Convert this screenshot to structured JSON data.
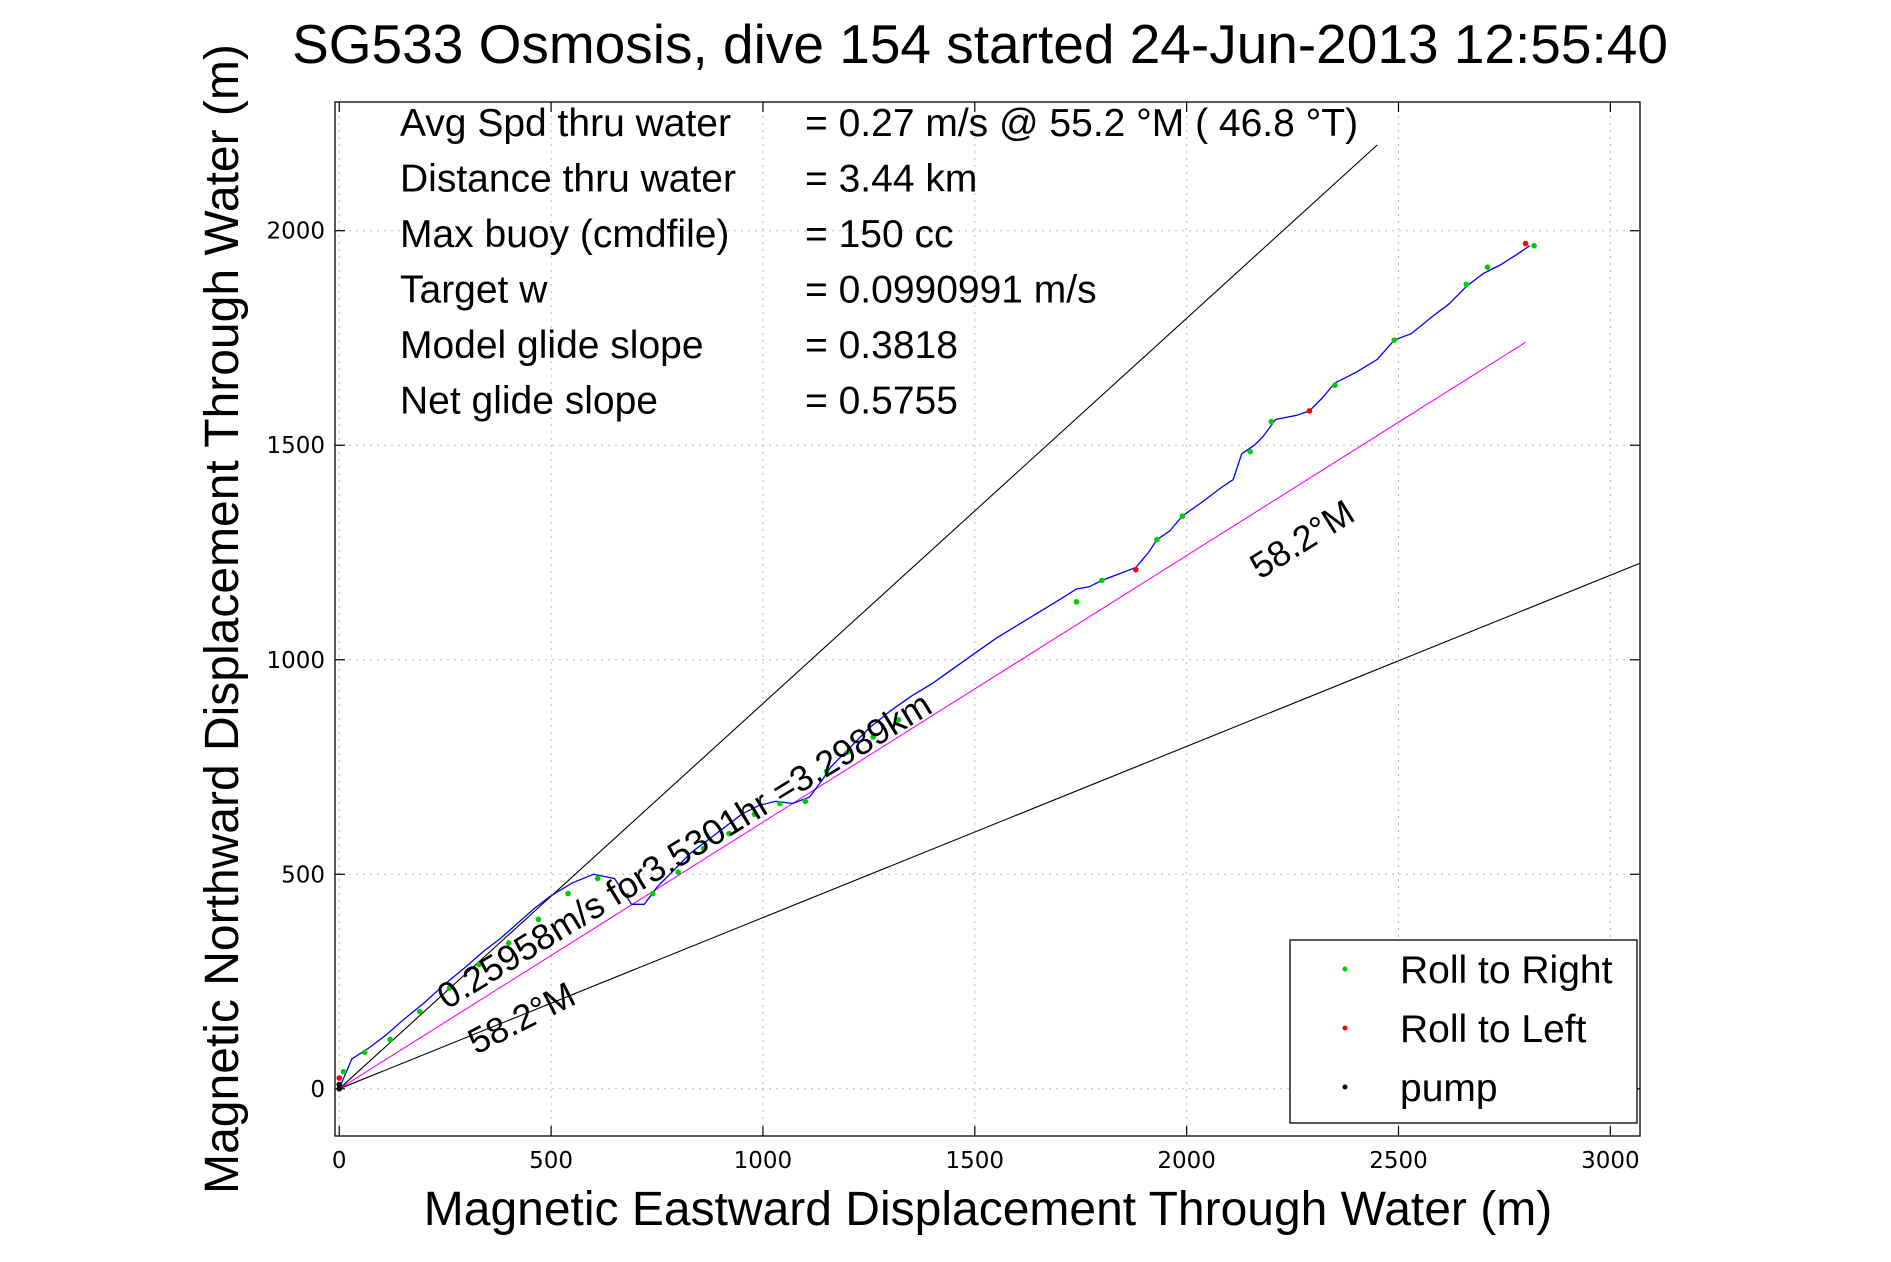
{
  "chart_data": {
    "type": "line",
    "title": "SG533 Osmosis, dive 154 started 24-Jun-2013 12:55:40",
    "xlabel": "Magnetic Eastward Displacement Through Water (m)",
    "ylabel": "Magnetic Northward Displacement Through Water (m)",
    "xlim": [
      -10,
      3070
    ],
    "ylim": [
      -110,
      2300
    ],
    "xticks": [
      0,
      500,
      1000,
      1500,
      2000,
      2500,
      3000
    ],
    "yticks": [
      0,
      500,
      1000,
      1500,
      2000
    ],
    "grid": true,
    "legend_position": "bottom-right",
    "stats": [
      {
        "label": "Avg Spd thru water",
        "value": "=  0.27 m/s @  55.2 °M ( 46.8 °T)"
      },
      {
        "label": "Distance thru water",
        "value": "=  3.44 km"
      },
      {
        "label": "Max buoy (cmdfile)",
        "value": "= 150 cc"
      },
      {
        "label": "Target w",
        "value": "= 0.0990991 m/s"
      },
      {
        "label": "Model glide slope",
        "value": "= 0.3818"
      },
      {
        "label": "Net glide slope",
        "value": "= 0.5755"
      }
    ],
    "annotations": [
      {
        "text": "0.25958m/s for3.5301hr =3.2989km"
      },
      {
        "text": "58.2°M"
      },
      {
        "text": "58.2°M"
      }
    ],
    "reference_lines": [
      {
        "x": [
          0,
          2450
        ],
        "y": [
          0,
          2200
        ],
        "color": "#000000"
      },
      {
        "x": [
          0,
          3070
        ],
        "y": [
          0,
          1225
        ],
        "color": "#000000"
      },
      {
        "x": [
          0,
          2800
        ],
        "y": [
          0,
          1740
        ],
        "color": "#ff00ff"
      }
    ],
    "track": {
      "color": "#0000ff",
      "x": [
        0,
        30,
        70,
        110,
        150,
        200,
        250,
        300,
        340,
        380,
        420,
        460,
        500,
        550,
        600,
        650,
        690,
        720,
        750,
        790,
        830,
        870,
        910,
        950,
        990,
        1030,
        1070,
        1110,
        1140,
        1160,
        1180,
        1210,
        1250,
        1300,
        1350,
        1400,
        1450,
        1500,
        1550,
        1600,
        1650,
        1700,
        1740,
        1770,
        1800,
        1840,
        1880,
        1910,
        1930,
        1960,
        1990,
        2040,
        2080,
        2110,
        2130,
        2160,
        2180,
        2210,
        2260,
        2290,
        2320,
        2350,
        2400,
        2450,
        2490,
        2530,
        2580,
        2620,
        2660,
        2700,
        2740,
        2780,
        2810
      ],
      "y": [
        0,
        70,
        95,
        125,
        160,
        200,
        245,
        285,
        320,
        350,
        385,
        420,
        450,
        480,
        500,
        490,
        430,
        430,
        470,
        510,
        550,
        580,
        610,
        640,
        660,
        670,
        665,
        680,
        720,
        750,
        770,
        800,
        840,
        880,
        915,
        945,
        980,
        1015,
        1050,
        1080,
        1110,
        1140,
        1165,
        1170,
        1185,
        1200,
        1215,
        1250,
        1280,
        1300,
        1335,
        1370,
        1400,
        1420,
        1480,
        1500,
        1520,
        1560,
        1570,
        1580,
        1610,
        1645,
        1670,
        1700,
        1745,
        1760,
        1800,
        1830,
        1870,
        1900,
        1920,
        1945,
        1965
      ]
    },
    "series": [
      {
        "name": "Roll to Right",
        "color": "#00cc00",
        "x": [
          10,
          60,
          120,
          190,
          260,
          330,
          400,
          470,
          540,
          610,
          680,
          740,
          800,
          860,
          920,
          980,
          1040,
          1100,
          1150,
          1200,
          1260,
          1320,
          1740,
          1800,
          1930,
          1990,
          2150,
          2200,
          2350,
          2490,
          2660,
          2710,
          2820
        ],
        "y": [
          40,
          85,
          115,
          180,
          235,
          290,
          340,
          395,
          455,
          490,
          450,
          455,
          505,
          560,
          595,
          640,
          665,
          670,
          740,
          785,
          820,
          860,
          1135,
          1185,
          1280,
          1335,
          1485,
          1555,
          1640,
          1745,
          1875,
          1915,
          1965
        ]
      },
      {
        "name": "Roll to Left",
        "color": "#ff0000",
        "x": [
          0,
          1880,
          2290,
          2800
        ],
        "y": [
          25,
          1210,
          1580,
          1970
        ]
      },
      {
        "name": "pump",
        "color": "#000000",
        "x": [
          0,
          0
        ],
        "y": [
          0,
          10
        ]
      }
    ]
  }
}
